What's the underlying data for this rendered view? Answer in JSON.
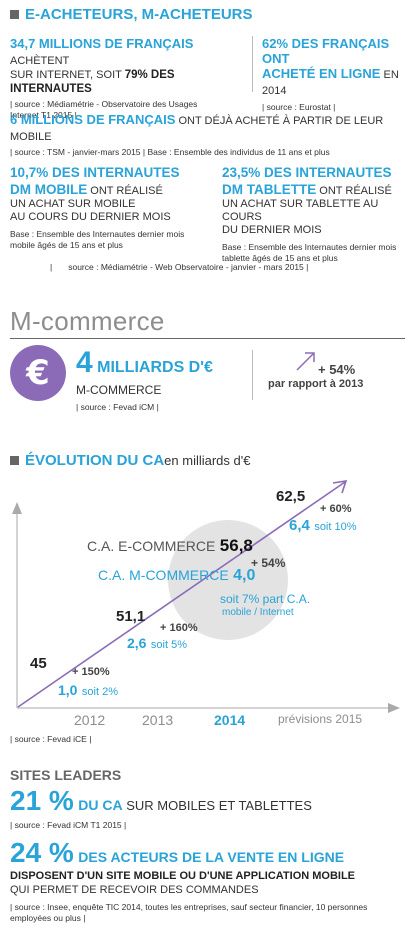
{
  "header": {
    "title": "E-ACHETEURS, M-ACHETEURS"
  },
  "stat1": {
    "big": "34,7 MILLIONS DE FRANÇAIS",
    "rest": " ACHÈTENT",
    "line2a": "SUR INTERNET, SOIT ",
    "line2b": "79% DES INTERNAUTES",
    "source": "| source : Médiamétrie - Observatoire des Usages Internet T1 2015 |"
  },
  "stat2": {
    "big": "62% DES FRANÇAIS ONT",
    "line2a": "ACHETÉ EN LIGNE",
    "line2b": " EN 2014",
    "source": "| source : Eurostat |"
  },
  "stat3": {
    "big": "6 MILLIONS DE FRANÇAIS",
    "rest": " ONT DÉJÀ ACHETÉ À PARTIR DE LEUR MOBILE",
    "source": "| source : TSM - janvier-mars 2015 | Base : Ensemble des individus de 11 ans et plus"
  },
  "stat4": {
    "big1": "10,7% DES INTERNAUTES",
    "big2": "DM MOBILE",
    "rest": " ONT RÉALISÉ",
    "line3": "UN ACHAT SUR MOBILE",
    "line4": "AU COURS DU DERNIER MOIS",
    "base": "Base : Ensemble des Internautes dernier mois mobile âgés de 15 ans et plus"
  },
  "stat5": {
    "big1": "23,5% DES INTERNAUTES",
    "big2": "DM TABLETTE",
    "rest": " ONT RÉALISÉ",
    "line3": "UN ACHAT SUR TABLETTE AU COURS",
    "line4": "DU DERNIER MOIS",
    "base": "Base : Ensemble des Internautes dernier mois tablette âgés de 15 ans et plus"
  },
  "shared_source": "source : Médiamétrie - Web Observatoire - janvier - mars 2015 |",
  "mcommerce": {
    "section_title": "M-commerce",
    "euro_symbol": "€",
    "big_num": "4",
    "big_unit": " MILLIARDS D'€",
    "sub": "M-COMMERCE",
    "source": "| source : Fevad iCM |",
    "growth": "+ 54%",
    "growth_sub": "par rapport à 2013"
  },
  "evolution": {
    "title_bold": "ÉVOLUTION DU CA",
    "title_rest": " en milliards d'€",
    "source": "| source : Fevad iCE |"
  },
  "chart_data": {
    "type": "line",
    "x": [
      "2012",
      "2013",
      "2014",
      "prévisions 2015"
    ],
    "series": [
      {
        "name": "C.A. E-COMMERCE",
        "values": [
          45,
          51.1,
          56.8,
          62.5
        ]
      },
      {
        "name": "C.A. M-COMMERCE",
        "values": [
          1.0,
          2.6,
          4.0,
          6.4
        ]
      }
    ],
    "labels": {
      "e": [
        "45",
        "51,1",
        "56,8",
        "62,5"
      ],
      "m": [
        "1,0",
        "2,6",
        "4,0",
        "6,4"
      ],
      "m_share": [
        "soit 2%",
        "soit 5%",
        "",
        "soit 10%"
      ],
      "growth": [
        "+ 150%",
        "+ 160%",
        "+ 54%",
        "+ 60%"
      ],
      "highlight_share": "soit 7% part C.A.",
      "highlight_share2": "mobile / Internet"
    },
    "highlight_year": "2014"
  },
  "leaders": {
    "title": "SITES LEADERS",
    "pct1": "21 %",
    "text1a": "DU CA",
    "text1b": " SUR MOBILES ET TABLETTES",
    "source1": "| source : Fevad iCM T1 2015 |",
    "pct2": "24 %",
    "text2": "DES ACTEURS DE LA VENTE EN LIGNE",
    "line2": "DISPOSENT D'UN SITE MOBILE OU D'UNE APPLICATION MOBILE",
    "line3": "QUI PERMET DE RECEVOIR DES COMMANDES",
    "source2": "| source : Insee, enquête TIC 2014, toutes les entreprises, sauf secteur financier, 10 personnes employées ou plus |"
  },
  "colors": {
    "cyan": "#29a3d8",
    "purple": "#8b6bb8",
    "grey_circle": "#e3e3e3"
  }
}
